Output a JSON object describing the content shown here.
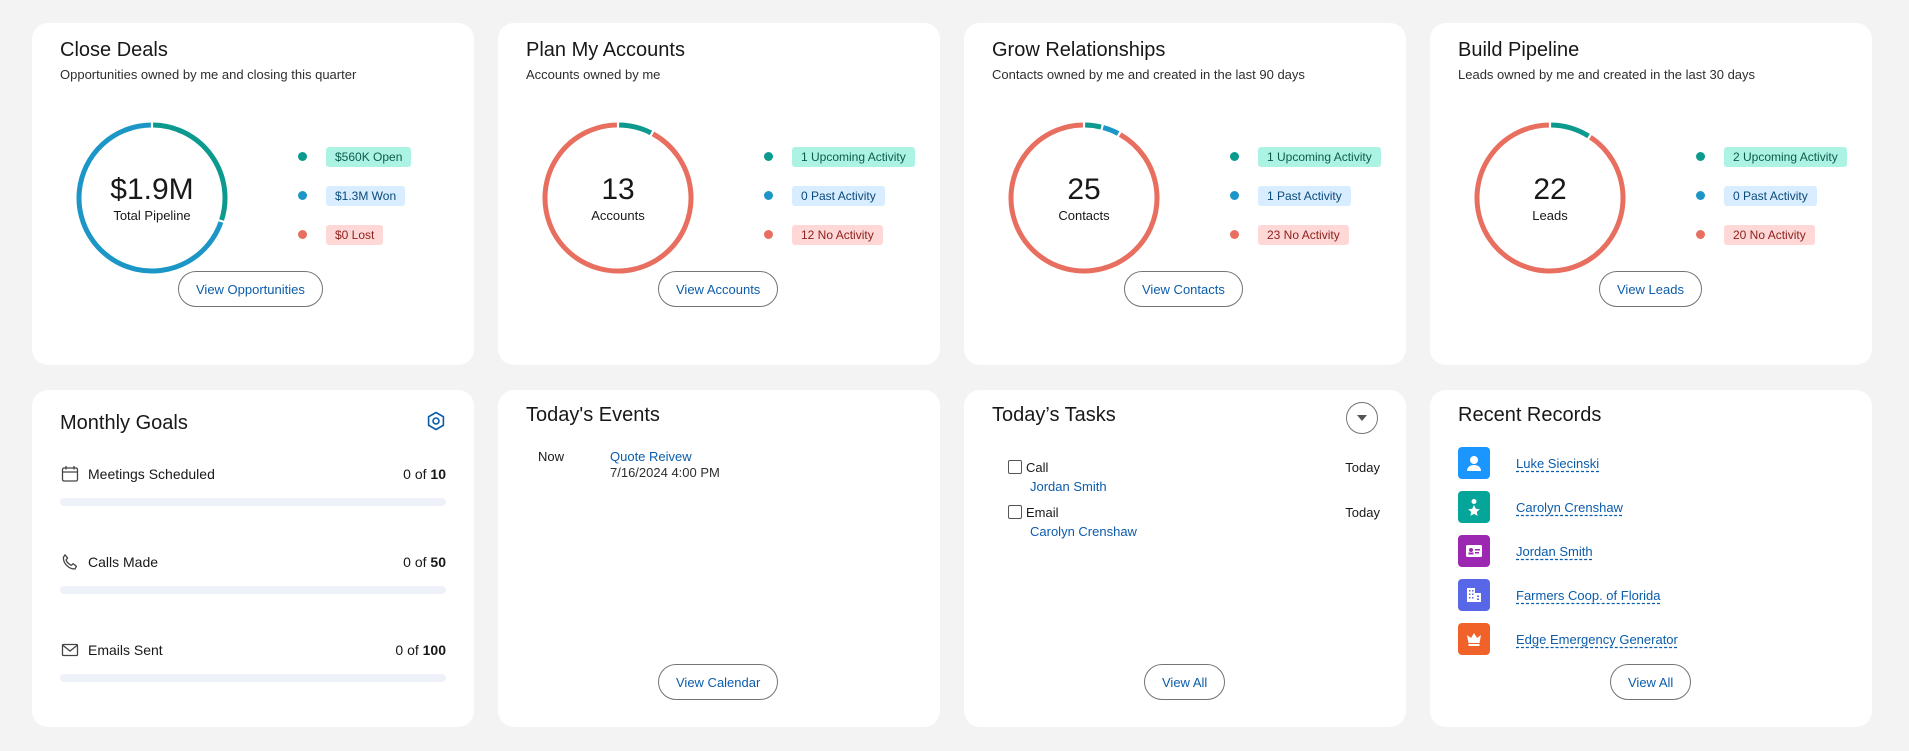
{
  "summary_cards": [
    {
      "title": "Close Deals",
      "subtitle": "Opportunities owned by me and closing this quarter",
      "center_value": "$1.9M",
      "center_label": "Total Pipeline",
      "legend": [
        {
          "label": "$560K Open",
          "color": "#0b9a8d"
        },
        {
          "label": "$1.3M Won",
          "color": "#1b96c7"
        },
        {
          "label": "$0 Lost",
          "color": "#e86f5f"
        }
      ],
      "button": "View Opportunities"
    },
    {
      "title": "Plan My Accounts",
      "subtitle": "Accounts owned by me",
      "center_value": "13",
      "center_label": "Accounts",
      "legend": [
        {
          "label": "1 Upcoming Activity",
          "color": "#0b9a8d"
        },
        {
          "label": "0 Past Activity",
          "color": "#1b96c7"
        },
        {
          "label": "12 No Activity",
          "color": "#e86f5f"
        }
      ],
      "button": "View Accounts"
    },
    {
      "title": "Grow Relationships",
      "subtitle": "Contacts owned by me and created in the last 90 days",
      "center_value": "25",
      "center_label": "Contacts",
      "legend": [
        {
          "label": "1 Upcoming Activity",
          "color": "#0b9a8d"
        },
        {
          "label": "1 Past Activity",
          "color": "#1b96c7"
        },
        {
          "label": "23 No Activity",
          "color": "#e86f5f"
        }
      ],
      "button": "View Contacts"
    },
    {
      "title": "Build Pipeline",
      "subtitle": "Leads owned by me and created in the last 30 days",
      "center_value": "22",
      "center_label": "Leads",
      "legend": [
        {
          "label": "2 Upcoming Activity",
          "color": "#0b9a8d"
        },
        {
          "label": "0 Past Activity",
          "color": "#1b96c7"
        },
        {
          "label": "20 No Activity",
          "color": "#e86f5f"
        }
      ],
      "button": "View Leads"
    }
  ],
  "donut_segments": [
    [
      {
        "value": 0.56,
        "color": "#0b9a8d"
      },
      {
        "value": 1.3,
        "color": "#1b96c7"
      },
      {
        "value": 0,
        "color": "#e86f5f"
      }
    ],
    [
      {
        "value": 1,
        "color": "#0b9a8d"
      },
      {
        "value": 0,
        "color": "#1b96c7"
      },
      {
        "value": 12,
        "color": "#e86f5f"
      }
    ],
    [
      {
        "value": 1,
        "color": "#0b9a8d"
      },
      {
        "value": 1,
        "color": "#1b96c7"
      },
      {
        "value": 23,
        "color": "#e86f5f"
      }
    ],
    [
      {
        "value": 2,
        "color": "#0b9a8d"
      },
      {
        "value": 0,
        "color": "#1b96c7"
      },
      {
        "value": 20,
        "color": "#e86f5f"
      }
    ]
  ],
  "goals": {
    "title": "Monthly Goals",
    "items": [
      {
        "icon": "calendar-icon",
        "label": "Meetings Scheduled",
        "prefix": "0 of ",
        "target": "10",
        "progress": 0
      },
      {
        "icon": "phone-icon",
        "label": "Calls Made",
        "prefix": "0 of ",
        "target": "50",
        "progress": 0
      },
      {
        "icon": "email-icon",
        "label": "Emails Sent",
        "prefix": "0 of ",
        "target": "100",
        "progress": 0
      }
    ]
  },
  "events": {
    "title": "Today's Events",
    "items": [
      {
        "time": "Now",
        "title": "Quote Reivew",
        "date": "7/16/2024 4:00 PM"
      }
    ],
    "button": "View Calendar"
  },
  "tasks": {
    "title": "Today’s Tasks",
    "items": [
      {
        "type": "Call",
        "who": "Jordan Smith",
        "due": "Today",
        "done": false
      },
      {
        "type": "Email",
        "who": "Carolyn Crenshaw",
        "due": "Today",
        "done": false
      }
    ],
    "button": "View All"
  },
  "records": {
    "title": "Recent Records",
    "items": [
      {
        "name": "Luke Siecinski",
        "icon": "user-icon",
        "color": "#1b96ff"
      },
      {
        "name": "Carolyn Crenshaw",
        "icon": "contact-star-icon",
        "color": "#06a59a"
      },
      {
        "name": "Jordan Smith",
        "icon": "contact-card-icon",
        "color": "#9c27b0"
      },
      {
        "name": "Farmers Coop. of Florida",
        "icon": "building-icon",
        "color": "#5867e8"
      },
      {
        "name": "Edge Emergency Generator",
        "icon": "crown-icon",
        "color": "#f0622a"
      }
    ],
    "button": "View All"
  }
}
